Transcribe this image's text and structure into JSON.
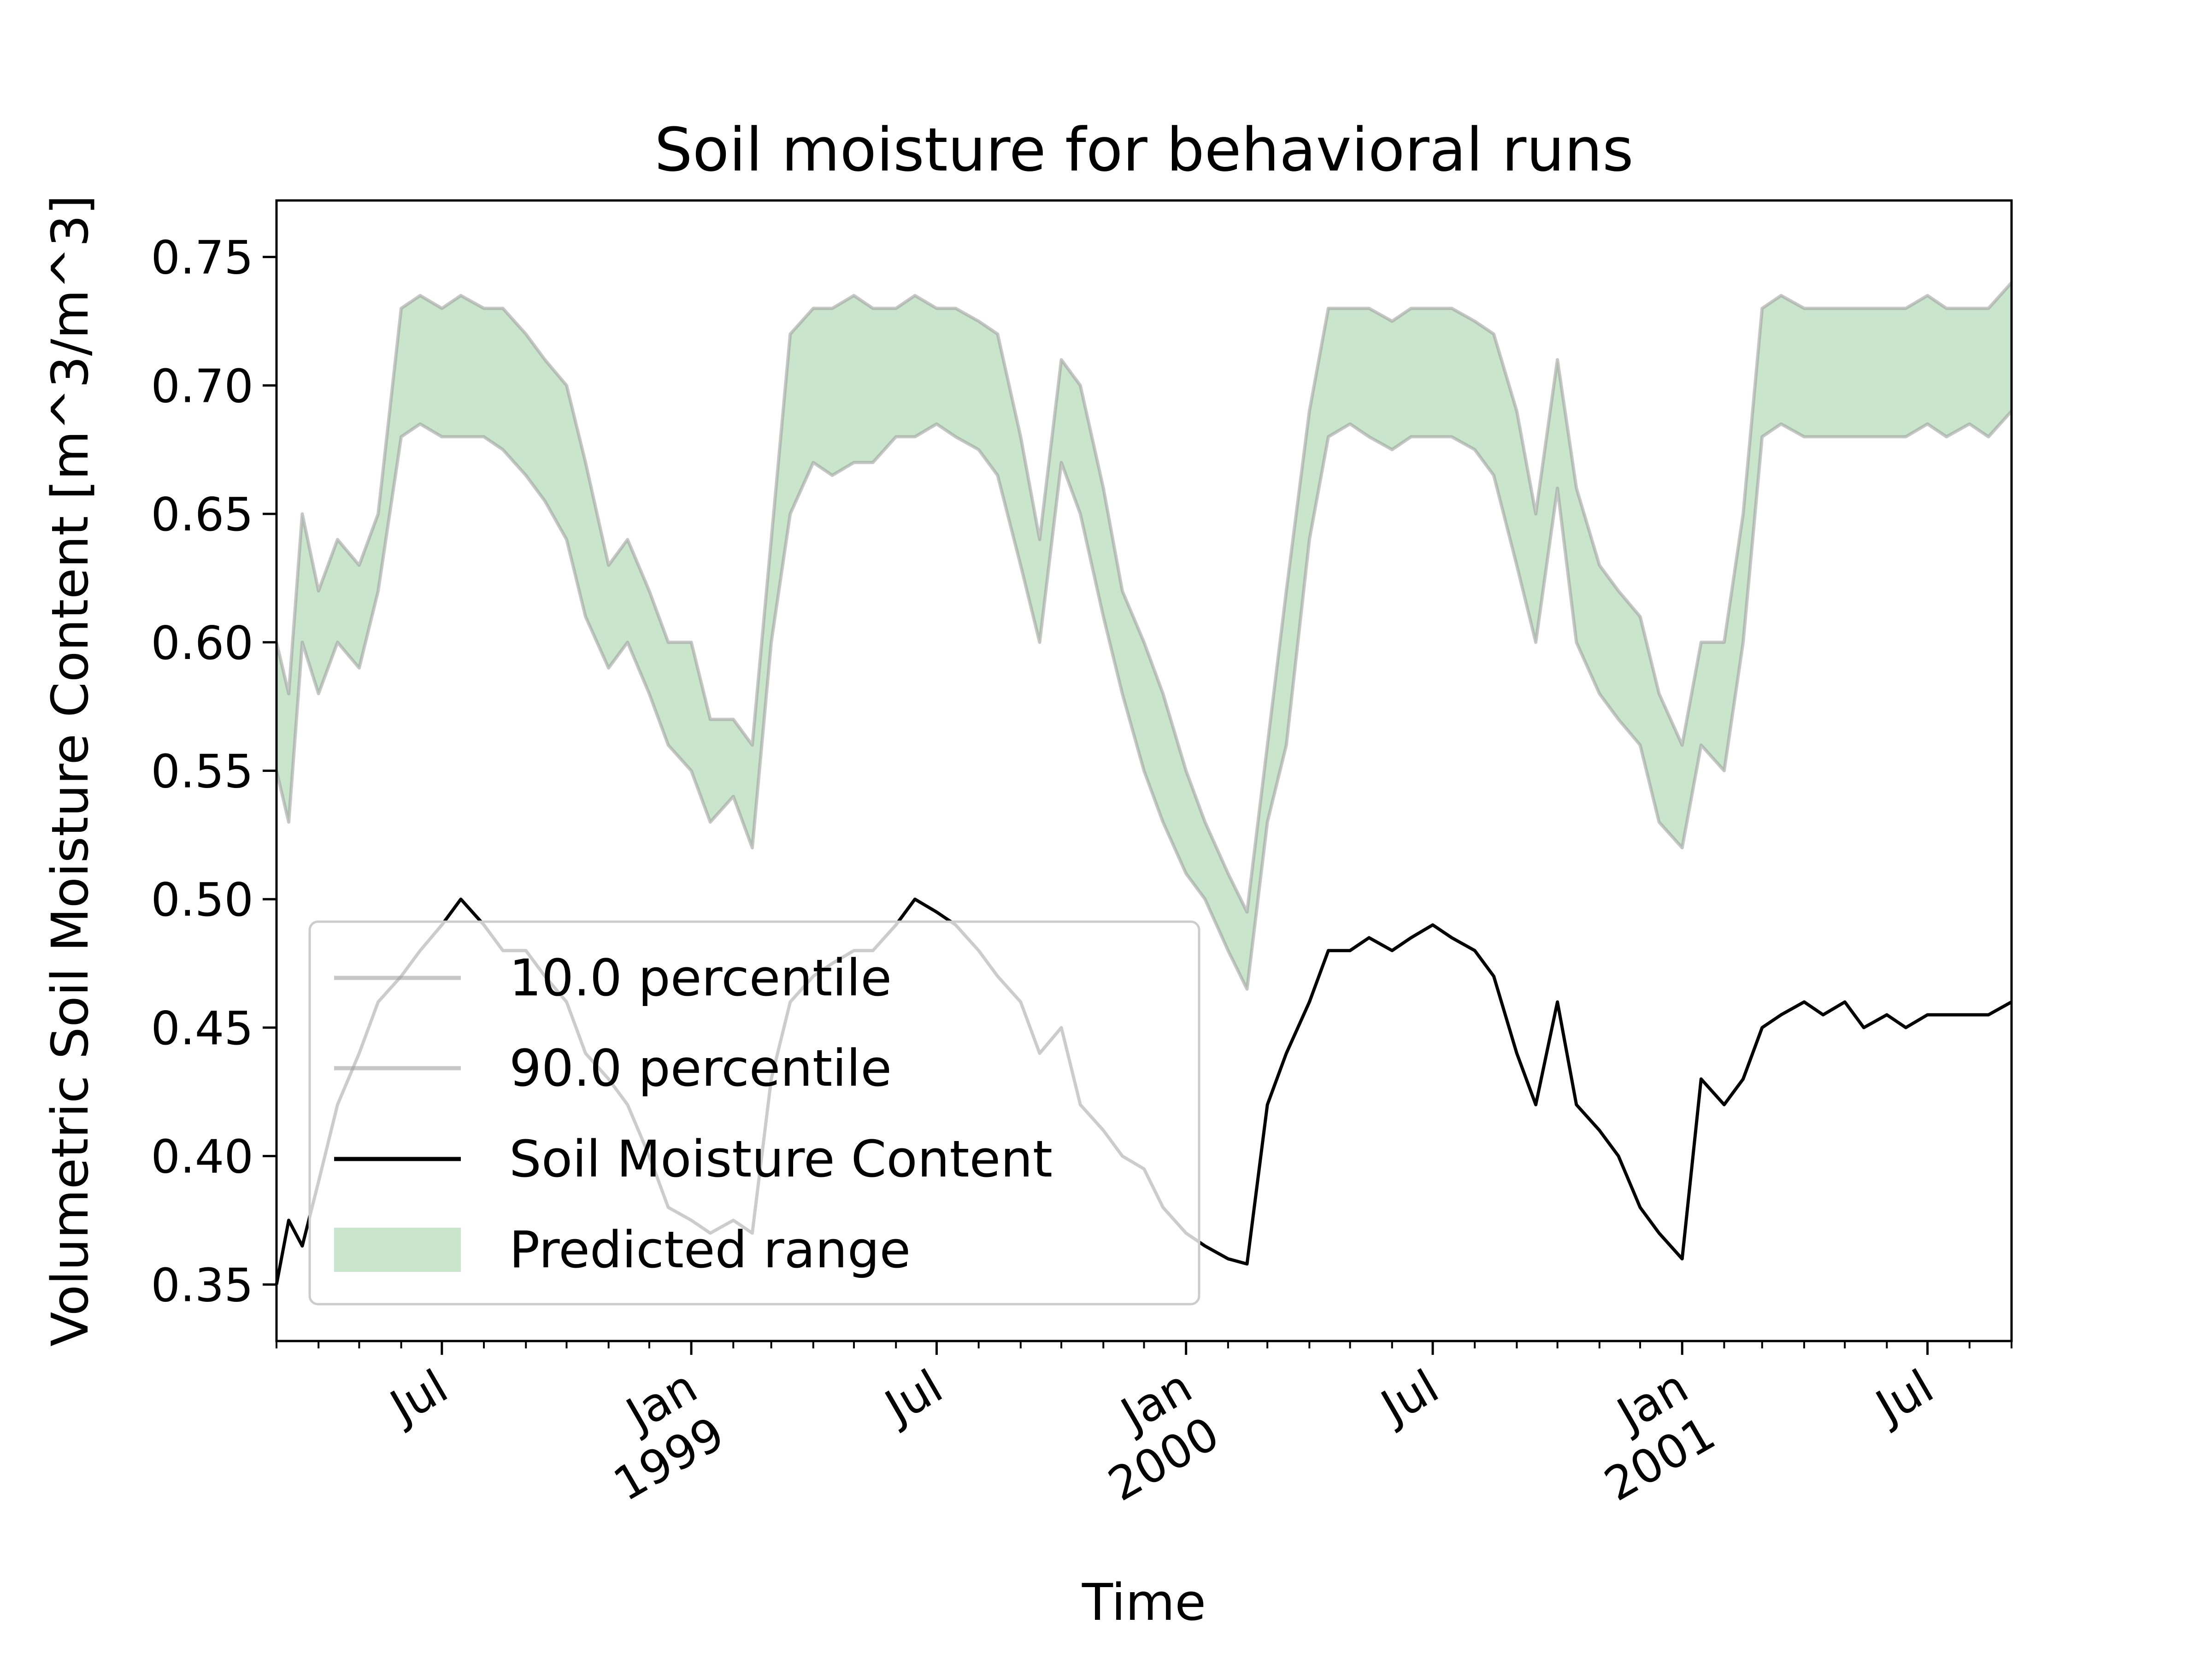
{
  "chart_data": {
    "type": "line",
    "title": "Soil moisture for behavioral runs",
    "xlabel": "Time",
    "ylabel": "Volumetric Soil Moisture Content [m^3/m^3]",
    "xlim": [
      "1998-03-01",
      "2001-09-01"
    ],
    "ylim": [
      0.328,
      0.772
    ],
    "yticks": [
      0.35,
      0.4,
      0.45,
      0.5,
      0.55,
      0.6,
      0.65,
      0.7,
      0.75
    ],
    "ytick_labels": [
      "0.35",
      "0.40",
      "0.45",
      "0.50",
      "0.55",
      "0.60",
      "0.65",
      "0.70",
      "0.75"
    ],
    "xticks_major": [
      {
        "date": "1998-07-01",
        "lines": [
          "Jul"
        ]
      },
      {
        "date": "1999-01-01",
        "lines": [
          "Jan",
          "1999"
        ]
      },
      {
        "date": "1999-07-01",
        "lines": [
          "Jul"
        ]
      },
      {
        "date": "2000-01-01",
        "lines": [
          "Jan",
          "2000"
        ]
      },
      {
        "date": "2000-07-01",
        "lines": [
          "Jul"
        ]
      },
      {
        "date": "2001-01-01",
        "lines": [
          "Jan",
          "2001"
        ]
      },
      {
        "date": "2001-07-01",
        "lines": [
          "Jul"
        ]
      }
    ],
    "grid": false,
    "legend_position": "lower-left",
    "legend": [
      "10.0 percentile",
      "90.0 percentile",
      "Soil Moisture Content",
      "Predicted range"
    ],
    "colors": {
      "percentile": "#999999",
      "observed": "#000000",
      "range_fill": "#b2dbb6"
    },
    "series": [
      {
        "name": "10.0 percentile",
        "x": [
          "1998-03-01",
          "1998-03-10",
          "1998-03-20",
          "1998-04-01",
          "1998-04-15",
          "1998-05-01",
          "1998-05-15",
          "1998-06-01",
          "1998-06-15",
          "1998-07-01",
          "1998-07-15",
          "1998-08-01",
          "1998-08-15",
          "1998-09-01",
          "1998-09-15",
          "1998-10-01",
          "1998-10-15",
          "1998-11-01",
          "1998-11-15",
          "1998-12-01",
          "1998-12-15",
          "1999-01-01",
          "1999-01-15",
          "1999-02-01",
          "1999-02-15",
          "1999-03-01",
          "1999-03-15",
          "1999-04-01",
          "1999-04-15",
          "1999-05-01",
          "1999-05-15",
          "1999-06-01",
          "1999-06-15",
          "1999-07-01",
          "1999-07-15",
          "1999-08-01",
          "1999-08-15",
          "1999-09-01",
          "1999-09-15",
          "1999-10-01",
          "1999-10-15",
          "1999-11-01",
          "1999-11-15",
          "1999-12-01",
          "1999-12-15",
          "2000-01-01",
          "2000-01-15",
          "2000-02-01",
          "2000-02-15",
          "2000-03-01",
          "2000-03-15",
          "2000-04-01",
          "2000-04-15",
          "2000-05-01",
          "2000-05-15",
          "2000-06-01",
          "2000-06-15",
          "2000-07-01",
          "2000-07-15",
          "2000-08-01",
          "2000-08-15",
          "2000-09-01",
          "2000-09-15",
          "2000-10-01",
          "2000-10-15",
          "2000-11-01",
          "2000-11-15",
          "2000-12-01",
          "2000-12-15",
          "2001-01-01",
          "2001-01-15",
          "2001-02-01",
          "2001-02-15",
          "2001-03-01",
          "2001-03-15",
          "2001-04-01",
          "2001-04-15",
          "2001-05-01",
          "2001-05-15",
          "2001-06-01",
          "2001-06-15",
          "2001-07-01",
          "2001-07-15",
          "2001-08-01",
          "2001-08-15",
          "2001-09-01"
        ],
        "values": [
          0.55,
          0.53,
          0.6,
          0.58,
          0.6,
          0.59,
          0.62,
          0.68,
          0.685,
          0.68,
          0.68,
          0.68,
          0.675,
          0.665,
          0.655,
          0.64,
          0.61,
          0.59,
          0.6,
          0.58,
          0.56,
          0.55,
          0.53,
          0.54,
          0.52,
          0.6,
          0.65,
          0.67,
          0.665,
          0.67,
          0.67,
          0.68,
          0.68,
          0.685,
          0.68,
          0.675,
          0.665,
          0.63,
          0.6,
          0.67,
          0.65,
          0.61,
          0.58,
          0.55,
          0.53,
          0.51,
          0.5,
          0.48,
          0.465,
          0.53,
          0.56,
          0.64,
          0.68,
          0.685,
          0.68,
          0.675,
          0.68,
          0.68,
          0.68,
          0.675,
          0.665,
          0.63,
          0.6,
          0.66,
          0.6,
          0.58,
          0.57,
          0.56,
          0.53,
          0.52,
          0.56,
          0.55,
          0.6,
          0.68,
          0.685,
          0.68,
          0.68,
          0.68,
          0.68,
          0.68,
          0.68,
          0.685,
          0.68,
          0.685,
          0.68,
          0.69
        ]
      },
      {
        "name": "90.0 percentile",
        "x": [
          "1998-03-01",
          "1998-03-10",
          "1998-03-20",
          "1998-04-01",
          "1998-04-15",
          "1998-05-01",
          "1998-05-15",
          "1998-06-01",
          "1998-06-15",
          "1998-07-01",
          "1998-07-15",
          "1998-08-01",
          "1998-08-15",
          "1998-09-01",
          "1998-09-15",
          "1998-10-01",
          "1998-10-15",
          "1998-11-01",
          "1998-11-15",
          "1998-12-01",
          "1998-12-15",
          "1999-01-01",
          "1999-01-15",
          "1999-02-01",
          "1999-02-15",
          "1999-03-01",
          "1999-03-15",
          "1999-04-01",
          "1999-04-15",
          "1999-05-01",
          "1999-05-15",
          "1999-06-01",
          "1999-06-15",
          "1999-07-01",
          "1999-07-15",
          "1999-08-01",
          "1999-08-15",
          "1999-09-01",
          "1999-09-15",
          "1999-10-01",
          "1999-10-15",
          "1999-11-01",
          "1999-11-15",
          "1999-12-01",
          "1999-12-15",
          "2000-01-01",
          "2000-01-15",
          "2000-02-01",
          "2000-02-15",
          "2000-03-01",
          "2000-03-15",
          "2000-04-01",
          "2000-04-15",
          "2000-05-01",
          "2000-05-15",
          "2000-06-01",
          "2000-06-15",
          "2000-07-01",
          "2000-07-15",
          "2000-08-01",
          "2000-08-15",
          "2000-09-01",
          "2000-09-15",
          "2000-10-01",
          "2000-10-15",
          "2000-11-01",
          "2000-11-15",
          "2000-12-01",
          "2000-12-15",
          "2001-01-01",
          "2001-01-15",
          "2001-02-01",
          "2001-02-15",
          "2001-03-01",
          "2001-03-15",
          "2001-04-01",
          "2001-04-15",
          "2001-05-01",
          "2001-05-15",
          "2001-06-01",
          "2001-06-15",
          "2001-07-01",
          "2001-07-15",
          "2001-08-01",
          "2001-08-15",
          "2001-09-01"
        ],
        "values": [
          0.6,
          0.58,
          0.65,
          0.62,
          0.64,
          0.63,
          0.65,
          0.73,
          0.735,
          0.73,
          0.735,
          0.73,
          0.73,
          0.72,
          0.71,
          0.7,
          0.67,
          0.63,
          0.64,
          0.62,
          0.6,
          0.6,
          0.57,
          0.57,
          0.56,
          0.64,
          0.72,
          0.73,
          0.73,
          0.735,
          0.73,
          0.73,
          0.735,
          0.73,
          0.73,
          0.725,
          0.72,
          0.68,
          0.64,
          0.71,
          0.7,
          0.66,
          0.62,
          0.6,
          0.58,
          0.55,
          0.53,
          0.51,
          0.495,
          0.56,
          0.62,
          0.69,
          0.73,
          0.73,
          0.73,
          0.725,
          0.73,
          0.73,
          0.73,
          0.725,
          0.72,
          0.69,
          0.65,
          0.71,
          0.66,
          0.63,
          0.62,
          0.61,
          0.58,
          0.56,
          0.6,
          0.6,
          0.65,
          0.73,
          0.735,
          0.73,
          0.73,
          0.73,
          0.73,
          0.73,
          0.73,
          0.735,
          0.73,
          0.73,
          0.73,
          0.74
        ]
      },
      {
        "name": "Soil Moisture Content",
        "x": [
          "1998-03-01",
          "1998-03-10",
          "1998-03-20",
          "1998-04-01",
          "1998-04-15",
          "1998-05-01",
          "1998-05-15",
          "1998-06-01",
          "1998-06-15",
          "1998-07-01",
          "1998-07-15",
          "1998-08-01",
          "1998-08-15",
          "1998-09-01",
          "1998-09-15",
          "1998-10-01",
          "1998-10-15",
          "1998-11-01",
          "1998-11-15",
          "1998-12-01",
          "1998-12-15",
          "1999-01-01",
          "1999-01-15",
          "1999-02-01",
          "1999-02-15",
          "1999-03-01",
          "1999-03-15",
          "1999-04-01",
          "1999-04-15",
          "1999-05-01",
          "1999-05-15",
          "1999-06-01",
          "1999-06-15",
          "1999-07-01",
          "1999-07-15",
          "1999-08-01",
          "1999-08-15",
          "1999-09-01",
          "1999-09-15",
          "1999-10-01",
          "1999-10-15",
          "1999-11-01",
          "1999-11-15",
          "1999-12-01",
          "1999-12-15",
          "2000-01-01",
          "2000-01-15",
          "2000-02-01",
          "2000-02-15",
          "2000-03-01",
          "2000-03-15",
          "2000-04-01",
          "2000-04-15",
          "2000-05-01",
          "2000-05-15",
          "2000-06-01",
          "2000-06-15",
          "2000-07-01",
          "2000-07-15",
          "2000-08-01",
          "2000-08-15",
          "2000-09-01",
          "2000-09-15",
          "2000-10-01",
          "2000-10-15",
          "2000-11-01",
          "2000-11-15",
          "2000-12-01",
          "2000-12-15",
          "2001-01-01",
          "2001-01-15",
          "2001-02-01",
          "2001-02-15",
          "2001-03-01",
          "2001-03-15",
          "2001-04-01",
          "2001-04-15",
          "2001-05-01",
          "2001-05-15",
          "2001-06-01",
          "2001-06-15",
          "2001-07-01",
          "2001-07-15",
          "2001-08-01",
          "2001-08-15",
          "2001-09-01"
        ],
        "values": [
          0.35,
          0.375,
          0.365,
          0.39,
          0.42,
          0.44,
          0.46,
          0.47,
          0.48,
          0.49,
          0.5,
          0.49,
          0.48,
          0.48,
          0.47,
          0.46,
          0.44,
          0.43,
          0.42,
          0.4,
          0.38,
          0.375,
          0.37,
          0.375,
          0.37,
          0.43,
          0.46,
          0.47,
          0.475,
          0.48,
          0.48,
          0.49,
          0.5,
          0.495,
          0.49,
          0.48,
          0.47,
          0.46,
          0.44,
          0.45,
          0.42,
          0.41,
          0.4,
          0.395,
          0.38,
          0.37,
          0.365,
          0.36,
          0.358,
          0.42,
          0.44,
          0.46,
          0.48,
          0.48,
          0.485,
          0.48,
          0.485,
          0.49,
          0.485,
          0.48,
          0.47,
          0.44,
          0.42,
          0.46,
          0.42,
          0.41,
          0.4,
          0.38,
          0.37,
          0.36,
          0.43,
          0.42,
          0.43,
          0.45,
          0.455,
          0.46,
          0.455,
          0.46,
          0.45,
          0.455,
          0.45,
          0.455,
          0.455,
          0.455,
          0.455,
          0.46
        ]
      }
    ]
  }
}
